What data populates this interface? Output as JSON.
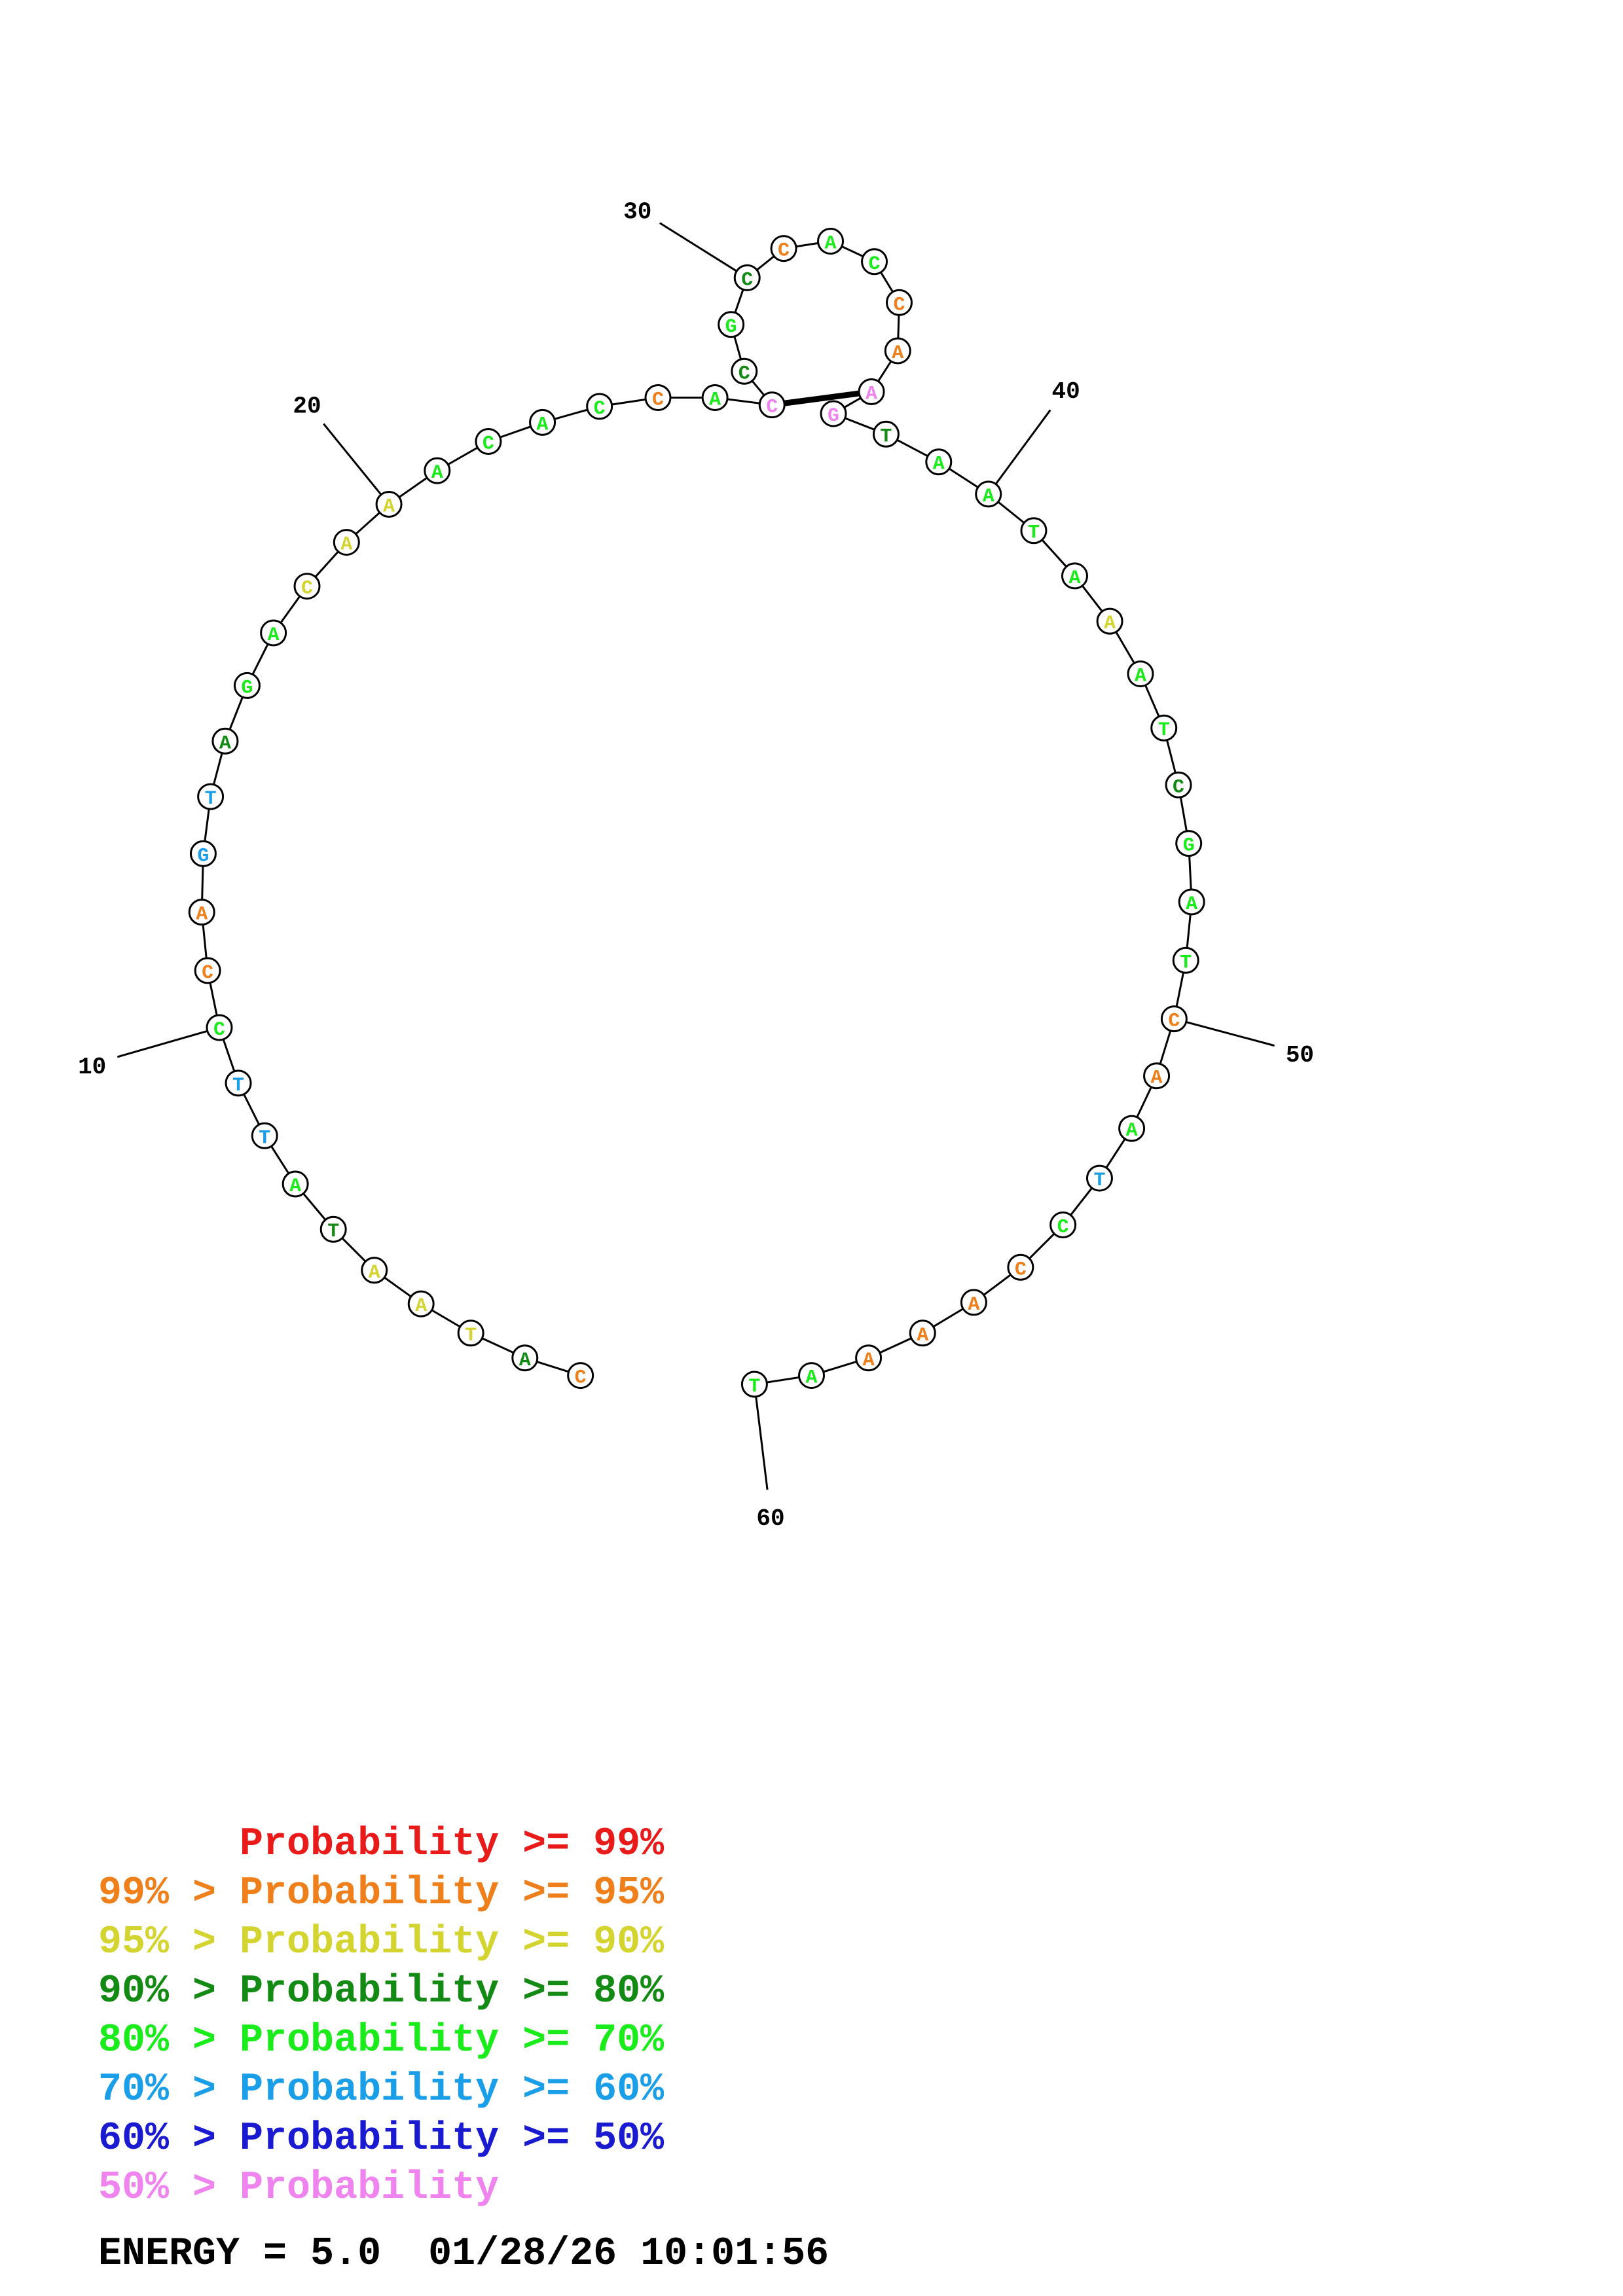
{
  "structure": {
    "sequence": [
      "C",
      "A",
      "T",
      "A",
      "A",
      "T",
      "A",
      "T",
      "T",
      "C",
      "C",
      "A",
      "G",
      "T",
      "A",
      "G",
      "A",
      "C",
      "A",
      "A",
      "A",
      "C",
      "A",
      "C",
      "C",
      "A",
      "C",
      "C",
      "G",
      "C",
      "C",
      "A",
      "C",
      "C",
      "A",
      "A",
      "G",
      "T",
      "A",
      "A",
      "T",
      "A",
      "A",
      "A",
      "T",
      "C",
      "G",
      "A",
      "T",
      "C",
      "A",
      "A",
      "T",
      "C",
      "C",
      "A",
      "A",
      "A",
      "A",
      "T"
    ],
    "prob_class": [
      1,
      3,
      2,
      2,
      2,
      3,
      4,
      5,
      5,
      4,
      1,
      1,
      5,
      5,
      3,
      4,
      4,
      2,
      2,
      2,
      4,
      4,
      4,
      4,
      1,
      4,
      7,
      3,
      4,
      3,
      1,
      4,
      4,
      1,
      1,
      7,
      7,
      3,
      4,
      4,
      4,
      4,
      2,
      4,
      4,
      3,
      4,
      4,
      4,
      1,
      1,
      4,
      5,
      4,
      1,
      1,
      1,
      1,
      4,
      4
    ],
    "position_labels": [
      {
        "index": 10,
        "text": "10"
      },
      {
        "index": 20,
        "text": "20"
      },
      {
        "index": 30,
        "text": "30"
      },
      {
        "index": 40,
        "text": "40"
      },
      {
        "index": 50,
        "text": "50"
      },
      {
        "index": 60,
        "text": "60"
      }
    ],
    "pair": [
      27,
      36
    ]
  },
  "legend": {
    "colors": [
      "#e81a1a",
      "#ef7f1a",
      "#d4d430",
      "#138a13",
      "#1aeb1a",
      "#1a9ee8",
      "#1a1ad0",
      "#ef84ef"
    ],
    "lines": [
      "      Probability >= 99%",
      "99% > Probability >= 95%",
      "95% > Probability >= 90%",
      "90% > Probability >= 80%",
      "80% > Probability >= 70%",
      "70% > Probability >= 60%",
      "60% > Probability >= 50%",
      "50% > Probability"
    ]
  },
  "energy": "ENERGY = 5.0  01/28/26 10:01:56"
}
